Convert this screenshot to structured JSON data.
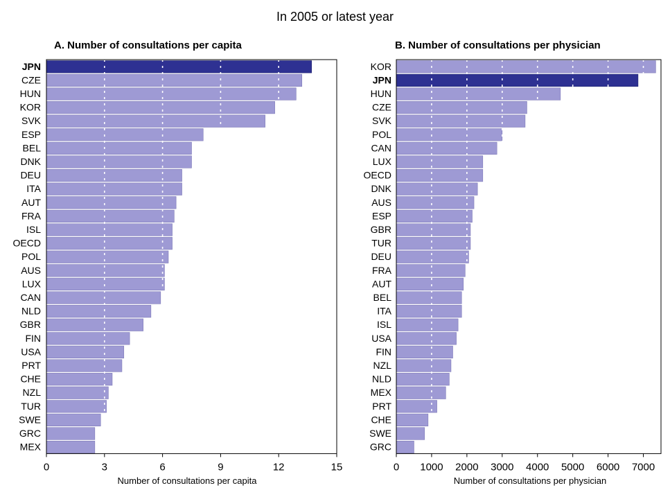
{
  "figure": {
    "title": "In 2005 or latest year"
  },
  "colors": {
    "bar": "#9e9ad4",
    "highlight": "#2e3192",
    "grid": "#ffffff",
    "axis": "#000000"
  },
  "chart_data": [
    {
      "type": "bar",
      "orientation": "horizontal",
      "title": "A. Number of consultations per capita",
      "xlabel": "Number of consultations per capita",
      "ylabel": "",
      "xlim": [
        0,
        15
      ],
      "xticks": [
        0,
        3,
        6,
        9,
        12,
        15
      ],
      "grid": "vertical dotted white",
      "highlight": "JPN",
      "categories": [
        "JPN",
        "CZE",
        "HUN",
        "KOR",
        "SVK",
        "ESP",
        "BEL",
        "DNK",
        "DEU",
        "ITA",
        "AUT",
        "FRA",
        "ISL",
        "OECD",
        "POL",
        "AUS",
        "LUX",
        "CAN",
        "NLD",
        "GBR",
        "FIN",
        "USA",
        "PRT",
        "CHE",
        "NZL",
        "TUR",
        "SWE",
        "GRC",
        "MEX"
      ],
      "values": [
        13.7,
        13.2,
        12.9,
        11.8,
        11.3,
        8.1,
        7.5,
        7.5,
        7.0,
        7.0,
        6.7,
        6.6,
        6.5,
        6.5,
        6.3,
        6.1,
        6.1,
        5.9,
        5.4,
        5.0,
        4.3,
        4.0,
        3.9,
        3.4,
        3.2,
        3.1,
        2.8,
        2.5,
        2.5
      ]
    },
    {
      "type": "bar",
      "orientation": "horizontal",
      "title": "B. Number of consultations per physician",
      "xlabel": "Number of consultations per physician",
      "ylabel": "",
      "xlim": [
        0,
        7500
      ],
      "xticks": [
        0,
        1000,
        2000,
        3000,
        4000,
        5000,
        6000,
        7000
      ],
      "grid": "vertical dotted white",
      "highlight": "JPN",
      "categories": [
        "KOR",
        "JPN",
        "HUN",
        "CZE",
        "SVK",
        "POL",
        "CAN",
        "LUX",
        "OECD",
        "DNK",
        "AUS",
        "ESP",
        "GBR",
        "TUR",
        "DEU",
        "FRA",
        "AUT",
        "BEL",
        "ITA",
        "ISL",
        "USA",
        "FIN",
        "NZL",
        "NLD",
        "MEX",
        "PRT",
        "CHE",
        "SWE",
        "GRC"
      ],
      "values": [
        7350,
        6850,
        4650,
        3700,
        3650,
        3000,
        2850,
        2450,
        2450,
        2300,
        2200,
        2150,
        2100,
        2100,
        2050,
        1950,
        1900,
        1850,
        1850,
        1750,
        1700,
        1600,
        1550,
        1500,
        1400,
        1150,
        900,
        800,
        500
      ]
    }
  ]
}
